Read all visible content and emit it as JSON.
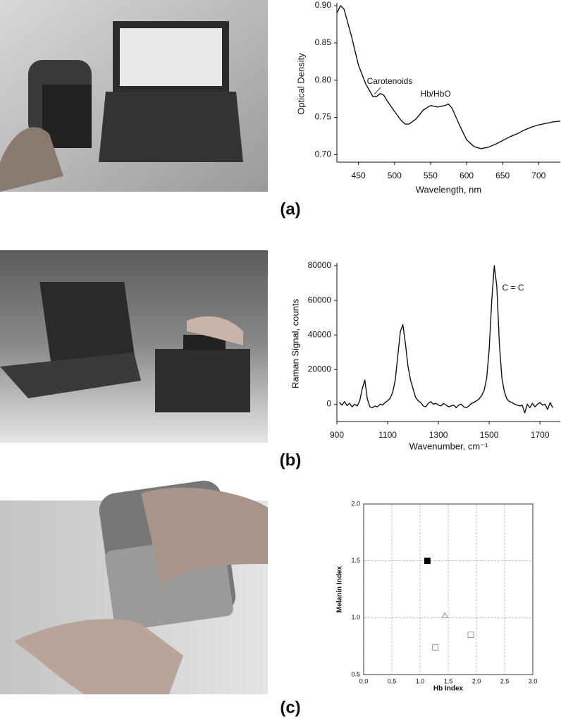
{
  "chart_data": [
    {
      "type": "line",
      "panel_label": "(a)",
      "y_label": "Optical Density",
      "x_label": "Wavelength, nm",
      "annotations": [
        "Carotenoids",
        "Hb/HbO"
      ],
      "color": "#111111",
      "x": [
        420,
        425,
        430,
        440,
        450,
        460,
        470,
        475,
        480,
        485,
        490,
        500,
        510,
        515,
        520,
        530,
        540,
        550,
        560,
        570,
        575,
        580,
        590,
        600,
        610,
        620,
        630,
        640,
        650,
        660,
        670,
        680,
        690,
        700,
        710,
        720,
        730
      ],
      "values": [
        0.89,
        0.9,
        0.895,
        0.86,
        0.82,
        0.795,
        0.778,
        0.778,
        0.782,
        0.78,
        0.772,
        0.758,
        0.745,
        0.741,
        0.741,
        0.748,
        0.76,
        0.766,
        0.764,
        0.766,
        0.768,
        0.762,
        0.74,
        0.72,
        0.711,
        0.708,
        0.71,
        0.714,
        0.719,
        0.724,
        0.728,
        0.733,
        0.737,
        0.74,
        0.742,
        0.744,
        0.745
      ],
      "xlim": [
        420,
        730
      ],
      "xticks": [
        450,
        500,
        550,
        600,
        650,
        700
      ],
      "ylim": [
        0.69,
        0.9
      ],
      "yticks": [
        {
          "value": 0.7,
          "label": "0.70"
        },
        0.75,
        {
          "value": 0.8,
          "label": "0.80"
        },
        0.85,
        {
          "value": 0.9,
          "label": "0.90"
        }
      ],
      "grid": false
    },
    {
      "type": "line",
      "panel_label": "(b)",
      "y_label": "Raman Signal, counts",
      "x_label": "Wavenumber, cm⁻¹",
      "annotations": [
        "C = C"
      ],
      "color": "#111111",
      "x": [
        910,
        920,
        930,
        940,
        950,
        960,
        970,
        980,
        990,
        1000,
        1010,
        1020,
        1030,
        1040,
        1050,
        1060,
        1070,
        1080,
        1090,
        1100,
        1110,
        1120,
        1130,
        1140,
        1150,
        1160,
        1170,
        1180,
        1190,
        1200,
        1210,
        1220,
        1230,
        1240,
        1250,
        1260,
        1270,
        1280,
        1290,
        1300,
        1310,
        1320,
        1330,
        1340,
        1350,
        1360,
        1370,
        1380,
        1390,
        1400,
        1410,
        1420,
        1430,
        1440,
        1450,
        1460,
        1470,
        1480,
        1490,
        1500,
        1510,
        1520,
        1530,
        1540,
        1550,
        1560,
        1570,
        1580,
        1590,
        1600,
        1610,
        1620,
        1630,
        1640,
        1650,
        1660,
        1670,
        1680,
        1690,
        1700,
        1710,
        1720,
        1730,
        1740,
        1750
      ],
      "values": [
        1000,
        -500,
        1500,
        -800,
        500,
        -1500,
        0,
        -1000,
        2000,
        9000,
        14000,
        3000,
        -1500,
        -2000,
        -1000,
        -1500,
        0,
        -500,
        1000,
        2000,
        3500,
        7000,
        14000,
        28000,
        42000,
        46000,
        35000,
        22000,
        14000,
        9000,
        4000,
        2000,
        1000,
        -1000,
        -1500,
        500,
        1500,
        0,
        500,
        -500,
        -1000,
        500,
        -500,
        -1500,
        -1000,
        -500,
        -2000,
        -500,
        0,
        -1500,
        -2000,
        -1000,
        500,
        1000,
        2000,
        3000,
        5000,
        8000,
        15000,
        32000,
        60000,
        80000,
        68000,
        35000,
        15000,
        7000,
        3000,
        1500,
        1000,
        0,
        -500,
        -1000,
        -500,
        -5000,
        0,
        -2000,
        500,
        -1500,
        0,
        1000,
        -500,
        0,
        -3000,
        1000,
        -2000
      ],
      "xlim": [
        900,
        1780
      ],
      "xticks": [
        900,
        1100,
        1300,
        1500,
        1700
      ],
      "ylim": [
        -10000,
        80000
      ],
      "yticks": [
        0,
        20000,
        40000,
        60000,
        80000
      ],
      "grid": false
    },
    {
      "type": "scatter",
      "panel_label": "(c)",
      "y_label": "Melanin Index",
      "x_label": "Hb Index",
      "x": [
        1.13,
        1.44,
        1.27,
        1.9
      ],
      "values": [
        1.5,
        1.02,
        0.74,
        0.85
      ],
      "markers": [
        "square",
        "triangle",
        "square",
        "square"
      ],
      "filled": [
        true,
        false,
        false,
        false
      ],
      "color": "#000000",
      "open_color": "#888888",
      "xlim": [
        0,
        3
      ],
      "xticks": [
        {
          "value": 0,
          "label": "0.0"
        },
        0.5,
        {
          "value": 1,
          "label": "1.0"
        },
        1.5,
        {
          "value": 2,
          "label": "2.0"
        },
        2.5,
        {
          "value": 3,
          "label": "3.0"
        }
      ],
      "ylim": [
        0.5,
        2
      ],
      "yticks": [
        0.5,
        {
          "value": 1,
          "label": "1.0"
        },
        1.5,
        {
          "value": 2,
          "label": "2.0"
        }
      ],
      "grid": true
    }
  ]
}
